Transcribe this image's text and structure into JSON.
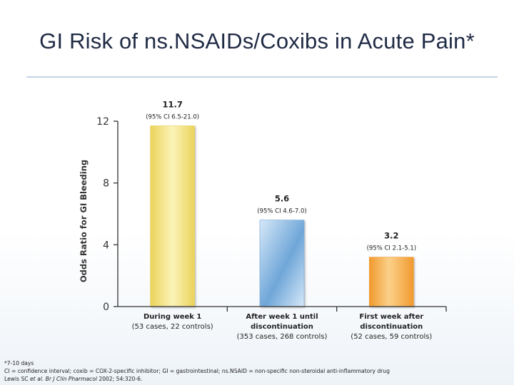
{
  "title": "GI Risk of ns.NSAIDs/Coxibs in Acute Pain*",
  "colors": {
    "title": "#1f2a44",
    "axis": "#333333",
    "bar_yellow_light": "#fbf3b8",
    "bar_yellow_dark": "#ead35a",
    "bar_blue_light": "#d6e8f8",
    "bar_blue_dark": "#6fa6d8",
    "bar_orange_light": "#fbd08a",
    "bar_orange_dark": "#f19a2e"
  },
  "chart_data": {
    "type": "bar",
    "title": "GI Risk of ns.NSAIDs/Coxibs in Acute Pain*",
    "xlabel": "",
    "ylabel": "Odds Ratio for GI Bleeding",
    "ylim": [
      0,
      12
    ],
    "yticks": [
      0,
      4,
      8,
      12
    ],
    "categories": [
      [
        "During week 1",
        "(53 cases, 22 controls)"
      ],
      [
        "After week 1 until",
        "discontinuation",
        "(353 cases, 268 controls)"
      ],
      [
        "First week after",
        "discontinuation",
        "(52 cases, 59 controls)"
      ]
    ],
    "values": [
      11.7,
      5.6,
      3.2
    ],
    "value_labels": [
      "11.7",
      "5.6",
      "3.2"
    ],
    "ci_labels": [
      "(95% CI 6.5-21.0)",
      "(95% CI 4.6-7.0)",
      "(95% CI 2.1-5.1)"
    ],
    "grid": false,
    "legend": "none"
  },
  "footnotes": {
    "line1": "*7-10 days",
    "line2": "CI = confidence interval; coxib = COX-2-specific inhibitor; GI = gastrointestinal; ns.NSAID = non-specific non-steroidal anti-inflammatory drug",
    "line3_author": "Lewis SC ",
    "line3_etal": "et al. Br J Clin Pharmacol",
    "line3_rest": " 2002; 54:320-6."
  }
}
